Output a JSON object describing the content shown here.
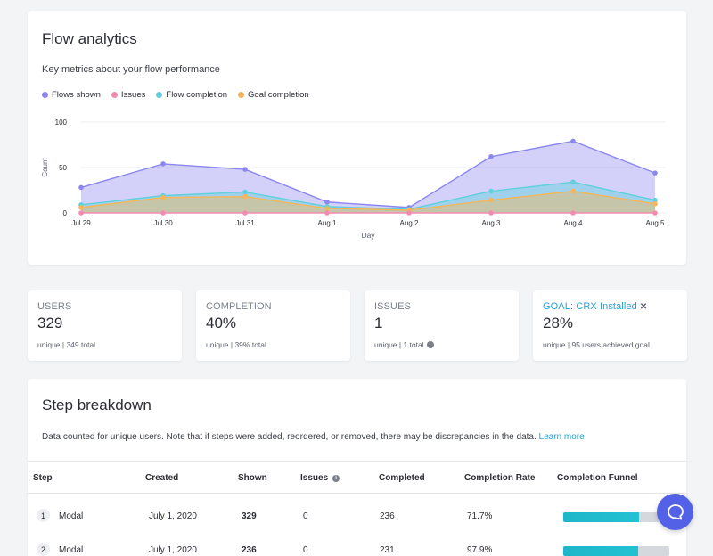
{
  "analytics": {
    "title": "Flow analytics",
    "subtitle": "Key metrics about your flow performance",
    "legend": [
      {
        "label": "Flows shown",
        "color": "#8b87ee"
      },
      {
        "label": "Issues",
        "color": "#f38bb0"
      },
      {
        "label": "Flow completion",
        "color": "#5fd0dc"
      },
      {
        "label": "Goal completion",
        "color": "#f5b55a"
      }
    ]
  },
  "chart_data": {
    "type": "area",
    "categories": [
      "Jul 29",
      "Jul 30",
      "Jul 31",
      "Aug 1",
      "Aug 2",
      "Aug 3",
      "Aug 4",
      "Aug 5"
    ],
    "series": [
      {
        "name": "Flows shown",
        "color": "#8b87ee",
        "values": [
          28,
          54,
          48,
          12,
          6,
          62,
          79,
          44
        ]
      },
      {
        "name": "Issues",
        "color": "#f38bb0",
        "values": [
          0,
          0,
          0,
          0,
          0,
          0,
          0,
          0
        ]
      },
      {
        "name": "Flow completion",
        "color": "#5fd0dc",
        "values": [
          9,
          19,
          23,
          7,
          4,
          24,
          34,
          14
        ]
      },
      {
        "name": "Goal completion",
        "color": "#f5b55a",
        "values": [
          6,
          17,
          18,
          5,
          3,
          14,
          24,
          10
        ]
      }
    ],
    "yticks": [
      0,
      50,
      100
    ],
    "ylim": [
      0,
      100
    ],
    "xlabel": "Day",
    "ylabel": "Count",
    "grid": true
  },
  "stats": [
    {
      "label": "USERS",
      "value": "329",
      "sub": "unique | 349 total",
      "info": false
    },
    {
      "label": "COMPLETION",
      "value": "40%",
      "sub": "unique | 39% total",
      "info": false
    },
    {
      "label": "ISSUES",
      "value": "1",
      "sub": "unique | 1 total",
      "info": true
    },
    {
      "label": "GOAL: CRX Installed",
      "value": "28%",
      "sub": "unique | 95 users achieved goal",
      "info": false,
      "closable": true
    }
  ],
  "steps": {
    "title": "Step breakdown",
    "note": "Data counted for unique users. Note that if steps were added, reordered, or removed, there may be discrepancies in the data.",
    "learn_more": "Learn more",
    "columns": [
      "Step",
      "Created",
      "Shown",
      "Issues",
      "Completed",
      "Completion Rate",
      "Completion Funnel"
    ],
    "rows": [
      {
        "num": "1",
        "name": "Modal",
        "created": "July 1, 2020",
        "shown": "329",
        "issues": "0",
        "completed": "236",
        "rate": "71.7%",
        "funnel": 0.717
      },
      {
        "num": "2",
        "name": "Modal",
        "created": "July 1, 2020",
        "shown": "236",
        "issues": "0",
        "completed": "231",
        "rate": "97.9%",
        "funnel": 0.702
      }
    ]
  }
}
